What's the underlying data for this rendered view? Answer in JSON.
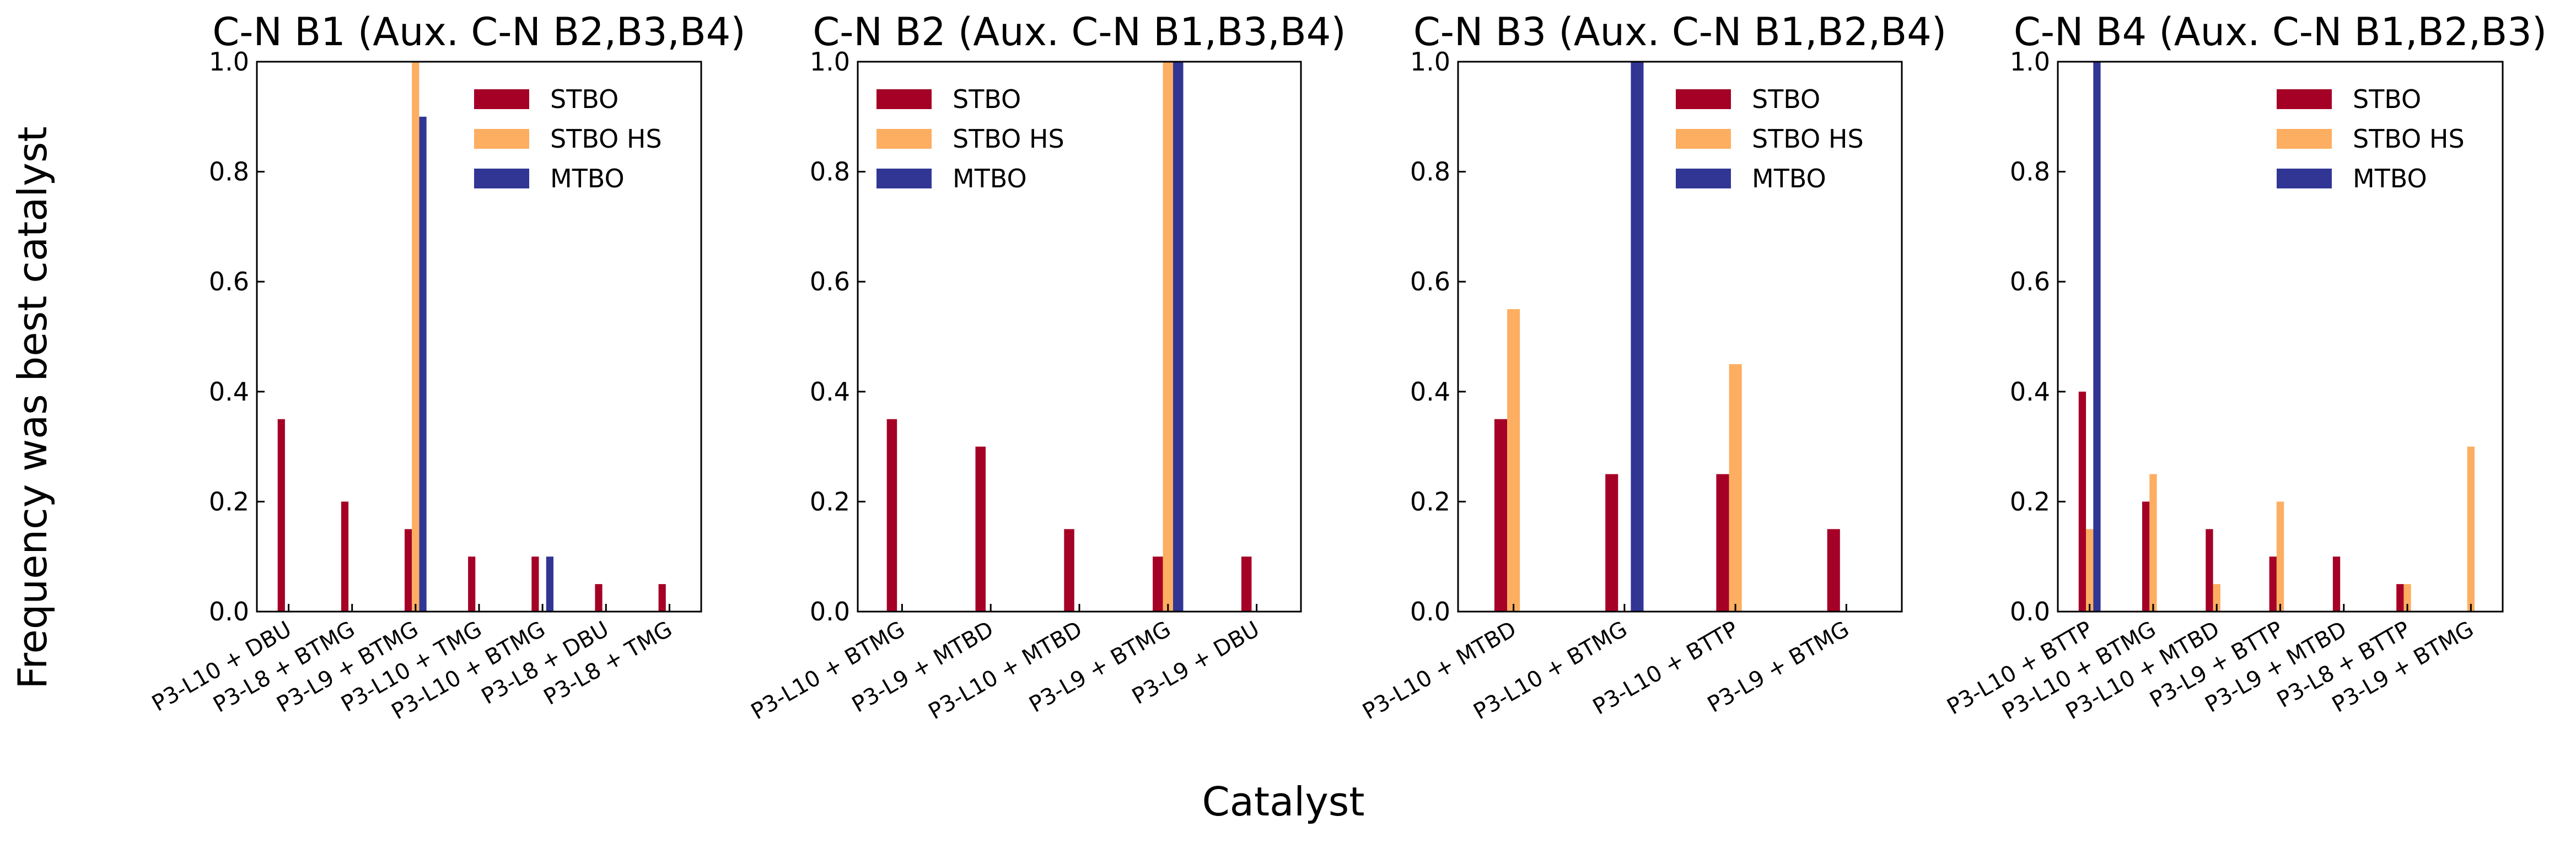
{
  "figure": {
    "ylabel": "Frequency was best catalyst",
    "xlabel": "Catalyst"
  },
  "colors": {
    "STBO": "#a50026",
    "STBO HS": "#fdae61",
    "MTBO": "#313695"
  },
  "chart_data": [
    {
      "type": "bar",
      "title": "C-N B1 (Aux. C-N B2,B3,B4)",
      "categories": [
        "P3-L10 + DBU",
        "P3-L8 + BTMG",
        "P3-L9 + BTMG",
        "P3-L10 + TMG",
        "P3-L10 + BTMG",
        "P3-L8 + DBU",
        "P3-L8 + TMG"
      ],
      "series": [
        {
          "name": "STBO",
          "values": [
            0.35,
            0.2,
            0.15,
            0.1,
            0.1,
            0.05,
            0.05
          ]
        },
        {
          "name": "STBO HS",
          "values": [
            0,
            0,
            1.0,
            0,
            0,
            0,
            0
          ]
        },
        {
          "name": "MTBO",
          "values": [
            0,
            0,
            0.9,
            0,
            0.1,
            0,
            0
          ]
        }
      ],
      "ylim": [
        0,
        1.0
      ],
      "yticks": [
        "0.0",
        "0.2",
        "0.4",
        "0.6",
        "0.8",
        "1.0"
      ],
      "legend": "top-right",
      "grid": false
    },
    {
      "type": "bar",
      "title": "C-N B2 (Aux. C-N B1,B3,B4)",
      "categories": [
        "P3-L10 + BTMG",
        "P3-L9 + MTBD",
        "P3-L10 + MTBD",
        "P3-L9 + BTMG",
        "P3-L9 + DBU"
      ],
      "series": [
        {
          "name": "STBO",
          "values": [
            0.35,
            0.3,
            0.15,
            0.1,
            0.1
          ]
        },
        {
          "name": "STBO HS",
          "values": [
            0,
            0,
            0,
            1.0,
            0
          ]
        },
        {
          "name": "MTBO",
          "values": [
            0,
            0,
            0,
            1.0,
            0
          ]
        }
      ],
      "ylim": [
        0,
        1.0
      ],
      "yticks": [
        "0.0",
        "0.2",
        "0.4",
        "0.6",
        "0.8",
        "1.0"
      ],
      "legend": "top-left",
      "grid": false
    },
    {
      "type": "bar",
      "title": "C-N B3 (Aux. C-N B1,B2,B4)",
      "categories": [
        "P3-L10 + MTBD",
        "P3-L10 + BTMG",
        "P3-L10 + BTTP",
        "P3-L9 + BTMG"
      ],
      "series": [
        {
          "name": "STBO",
          "values": [
            0.35,
            0.25,
            0.25,
            0.15
          ]
        },
        {
          "name": "STBO HS",
          "values": [
            0.55,
            0,
            0.45,
            0
          ]
        },
        {
          "name": "MTBO",
          "values": [
            0,
            1.0,
            0,
            0
          ]
        }
      ],
      "ylim": [
        0,
        1.0
      ],
      "yticks": [
        "0.0",
        "0.2",
        "0.4",
        "0.6",
        "0.8",
        "1.0"
      ],
      "legend": "top-right",
      "grid": false
    },
    {
      "type": "bar",
      "title": "C-N B4 (Aux. C-N B1,B2,B3)",
      "categories": [
        "P3-L10 + BTTP",
        "P3-L10 + BTMG",
        "P3-L10 + MTBD",
        "P3-L9 + BTTP",
        "P3-L9 + MTBD",
        "P3-L8 + BTTP",
        "P3-L9 + BTMG"
      ],
      "series": [
        {
          "name": "STBO",
          "values": [
            0.4,
            0.2,
            0.15,
            0.1,
            0.1,
            0.05,
            0
          ]
        },
        {
          "name": "STBO HS",
          "values": [
            0.15,
            0.25,
            0.05,
            0.2,
            0,
            0.05,
            0.3
          ]
        },
        {
          "name": "MTBO",
          "values": [
            1.0,
            0,
            0,
            0,
            0,
            0,
            0
          ]
        }
      ],
      "ylim": [
        0,
        1.0
      ],
      "yticks": [
        "0.0",
        "0.2",
        "0.4",
        "0.6",
        "0.8",
        "1.0"
      ],
      "legend": "top-right",
      "grid": false
    }
  ]
}
